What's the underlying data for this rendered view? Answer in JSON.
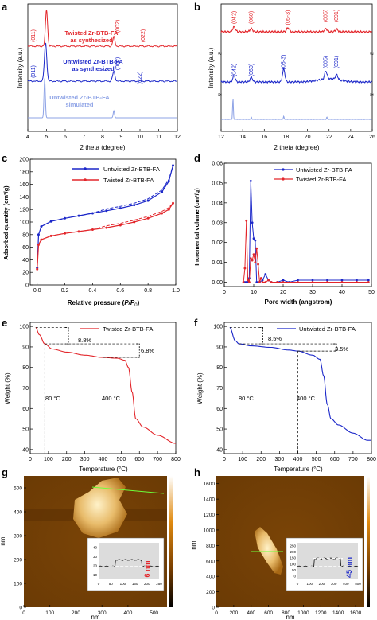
{
  "panels": {
    "a": {
      "letter": "a",
      "xlabel": "2 theta (degree)",
      "ylabel": "Intensity (a.u.)",
      "xticks": [
        "4",
        "5",
        "6",
        "7",
        "8",
        "9",
        "10",
        "11",
        "12"
      ],
      "curves": [
        {
          "label_line1": "Twisted Zr-BTB-FA",
          "label_line2": "as synthesized",
          "color": "#e3262b",
          "peaks": [
            {
              "x": 5.0,
              "h": 40,
              "label": "(011)"
            },
            {
              "x": 8.6,
              "h": 10,
              "label": "(002)"
            },
            {
              "x": 10.1,
              "h": 0,
              "label": "(022)"
            }
          ]
        },
        {
          "label_line1": "Untwisted Zr-BTB-FA",
          "label_line2": "as synthesized",
          "color": "#1b27c9",
          "peaks": [
            {
              "x": 4.95,
              "h": 40,
              "label": "(011)"
            },
            {
              "x": 8.6,
              "h": 10,
              "label": "(002)"
            },
            {
              "x": 10.1,
              "h": 0,
              "label": "(022)"
            }
          ]
        },
        {
          "label_line1": "Untwisted Zr-BTB-FA",
          "label_line2": "simulated",
          "color": "#8ea3e6",
          "peaks": [
            {
              "x": 4.9,
              "h": 45,
              "label": ""
            },
            {
              "x": 8.6,
              "h": 8,
              "label": ""
            }
          ]
        }
      ]
    },
    "b": {
      "letter": "b",
      "xlabel": "2 theta (degree)",
      "ylabel": "Intensity (a.u.)",
      "xticks": [
        "12",
        "14",
        "16",
        "18",
        "20",
        "22",
        "24",
        "26"
      ],
      "top_labels": [
        "(042)",
        "(060)",
        "(05-3)",
        "(005)",
        "(091)"
      ],
      "mid_labels": [
        "(042)",
        "(060)",
        "(05-3)",
        "(005)",
        "(091)"
      ]
    },
    "c": {
      "letter": "c",
      "xlabel_prefix": "Relative pressure (",
      "xlabel_italic": "P/P",
      "xlabel_sub": "0",
      "xlabel_suffix": ")",
      "ylabel": "Adsorbed quantity (cm³/g)",
      "xticks": [
        "0.0",
        "0.2",
        "0.4",
        "0.6",
        "0.8",
        "1.0"
      ],
      "yticks": [
        "0",
        "20",
        "40",
        "60",
        "80",
        "100",
        "120",
        "140",
        "160",
        "180",
        "200"
      ],
      "legend": [
        "Untwisted Zr-BTB-FA",
        "Twisted Zr-BTB-FA"
      ]
    },
    "d": {
      "letter": "d",
      "xlabel": "Pore width (angstrom)",
      "ylabel": "Incremental volume (cm³/g)",
      "xticks": [
        "0",
        "10",
        "20",
        "30",
        "40",
        "50"
      ],
      "yticks": [
        "0.00",
        "0.01",
        "0.02",
        "0.03",
        "0.04",
        "0.05",
        "0.06"
      ],
      "legend": [
        "Untwisted Zr-BTB-FA",
        "Twisted Zr-BTB-FA"
      ]
    },
    "e": {
      "letter": "e",
      "xlabel": "Temperature (°C)",
      "ylabel": "Weight (%)",
      "xticks": [
        "0",
        "100",
        "200",
        "300",
        "400",
        "500",
        "600",
        "700",
        "800"
      ],
      "yticks": [
        "40",
        "50",
        "60",
        "70",
        "80",
        "90",
        "100"
      ],
      "legend": "Twisted Zr-BTB-FA",
      "ann1": "8.8%",
      "ann2": "6.8%",
      "t1": "80 °C",
      "t2": "400 °C"
    },
    "f": {
      "letter": "f",
      "xlabel": "Temperature (°C)",
      "ylabel": "Weight (%)",
      "xticks": [
        "0",
        "100",
        "200",
        "300",
        "400",
        "500",
        "600",
        "700",
        "800"
      ],
      "yticks": [
        "40",
        "50",
        "60",
        "70",
        "80",
        "90",
        "100"
      ],
      "legend": "Untwisted Zr-BTB-FA",
      "ann1": "8.5%",
      "ann2": "3.5%",
      "t1": "80 °C",
      "t2": "400 °C"
    },
    "g": {
      "letter": "g",
      "xlabel": "nm",
      "ylabel": "nm",
      "xticks": [
        "0",
        "100",
        "200",
        "300",
        "400",
        "500"
      ],
      "yticks": [
        "0",
        "100",
        "200",
        "300",
        "400",
        "500"
      ],
      "inset_xlabel": "nm",
      "inset_ylabel": "nm",
      "inset_xticks": [
        "0",
        "50",
        "100",
        "150",
        "200",
        "250"
      ],
      "inset_yticks": [
        "10",
        "20",
        "30",
        "40"
      ],
      "height_label": "6 nm"
    },
    "h": {
      "letter": "h",
      "xlabel": "nm",
      "ylabel": "nm",
      "xticks": [
        "0",
        "200",
        "400",
        "600",
        "800",
        "1000",
        "1200",
        "1400",
        "1600"
      ],
      "yticks": [
        "0",
        "200",
        "400",
        "600",
        "800",
        "1000",
        "1200",
        "1400",
        "1600"
      ],
      "inset_xlabel": "nm",
      "inset_xticks": [
        "0",
        "100",
        "200",
        "300",
        "400",
        "500"
      ],
      "inset_yticks": [
        "0",
        "50",
        "100",
        "150",
        "200",
        "250"
      ],
      "inset_ylabel": "nm",
      "height_label": "45 nm"
    }
  },
  "chart_data": [
    {
      "type": "line",
      "panel": "a",
      "xlabel": "2 theta (degree)",
      "ylabel": "Intensity (a.u.)",
      "xlim": [
        4,
        12
      ],
      "series": [
        {
          "name": "Twisted Zr-BTB-FA as synthesized",
          "peaks_x": [
            5.0,
            8.6,
            10.1
          ],
          "peak_labels": [
            "(011)",
            "(002)",
            "(022)"
          ]
        },
        {
          "name": "Untwisted Zr-BTB-FA as synthesized",
          "peaks_x": [
            4.95,
            8.6,
            10.1
          ],
          "peak_labels": [
            "(011)",
            "(002)",
            "(022)"
          ]
        },
        {
          "name": "Untwisted Zr-BTB-FA simulated",
          "peaks_x": [
            4.9,
            8.6
          ]
        }
      ]
    },
    {
      "type": "line",
      "panel": "b",
      "xlabel": "2 theta (degree)",
      "ylabel": "Intensity (a.u.)",
      "xlim": [
        12,
        26
      ],
      "series": [
        {
          "name": "red",
          "peaks_x": [
            13.2,
            14.8,
            18.2,
            21.7,
            22.7
          ],
          "peak_labels": [
            "(042)",
            "(060)",
            "(05-3)",
            "(005)",
            "(091)"
          ]
        },
        {
          "name": "blue",
          "peaks_x": [
            13.2,
            14.8,
            17.8,
            21.7,
            22.7
          ],
          "peak_labels": [
            "(042)",
            "(060)",
            "(05-3)",
            "(005)",
            "(091)"
          ]
        },
        {
          "name": "simulated",
          "peaks_x": [
            13.1,
            14.8,
            17.8,
            21.8
          ]
        }
      ]
    },
    {
      "type": "line",
      "panel": "c",
      "xlabel": "Relative pressure (P/P0)",
      "ylabel": "Adsorbed quantity (cm3/g)",
      "xlim": [
        -0.05,
        1.0
      ],
      "ylim": [
        0,
        200
      ],
      "series": [
        {
          "name": "Untwisted Zr-BTB-FA",
          "x": [
            0.0,
            0.01,
            0.03,
            0.1,
            0.2,
            0.3,
            0.4,
            0.5,
            0.6,
            0.7,
            0.8,
            0.9,
            0.95,
            0.98
          ],
          "y": [
            27,
            80,
            93,
            101,
            106,
            110,
            114,
            118,
            122,
            127,
            134,
            148,
            165,
            190
          ]
        },
        {
          "name": "Twisted Zr-BTB-FA",
          "x": [
            0.0,
            0.01,
            0.03,
            0.1,
            0.2,
            0.3,
            0.4,
            0.5,
            0.6,
            0.7,
            0.8,
            0.9,
            0.95,
            0.98
          ],
          "y": [
            25,
            64,
            72,
            78,
            82,
            85,
            88,
            91,
            95,
            100,
            106,
            114,
            120,
            130
          ]
        }
      ]
    },
    {
      "type": "line",
      "panel": "d",
      "xlabel": "Pore width (angstrom)",
      "ylabel": "Incremental volume (cm3/g)",
      "xlim": [
        0,
        50
      ],
      "ylim": [
        -0.001,
        0.06
      ],
      "series": [
        {
          "name": "Untwisted Zr-BTB-FA",
          "x": [
            7,
            7.5,
            8,
            8.5,
            9,
            9.5,
            10,
            10.5,
            11,
            11.5,
            12,
            13,
            14,
            15,
            16,
            18,
            20,
            22,
            25,
            30,
            35,
            40,
            45,
            49
          ],
          "y": [
            0,
            0,
            0,
            0.002,
            0.051,
            0.03,
            0.022,
            0.021,
            0.0,
            0.0,
            0.0,
            0.001,
            0.004,
            0.001,
            0,
            0,
            0.001,
            0,
            0.001,
            0.001,
            0.001,
            0.001,
            0.001,
            0.001
          ]
        },
        {
          "name": "Twisted Zr-BTB-FA",
          "x": [
            6.5,
            7,
            7.5,
            8,
            8.5,
            9,
            9.5,
            10,
            10.5,
            11,
            11.5,
            12,
            12.5,
            13,
            14,
            15,
            16,
            18,
            20,
            25,
            30,
            35,
            40,
            45,
            49
          ],
          "y": [
            0,
            0.007,
            0.031,
            0.001,
            0.0,
            0.012,
            0.011,
            0.014,
            0.01,
            0.017,
            0.009,
            0.0,
            0.002,
            0.0,
            0,
            0.001,
            0,
            0,
            0,
            0,
            0,
            0,
            0,
            0,
            0
          ]
        }
      ]
    },
    {
      "type": "line",
      "panel": "e",
      "xlabel": "Temperature (°C)",
      "ylabel": "Weight (%)",
      "xlim": [
        0,
        800
      ],
      "ylim": [
        38,
        102
      ],
      "series": [
        {
          "name": "Twisted Zr-BTB-FA",
          "x": [
            30,
            50,
            80,
            120,
            200,
            300,
            400,
            480,
            520,
            540,
            560,
            580,
            620,
            700,
            800
          ],
          "y": [
            99.5,
            96,
            91.5,
            89,
            87.5,
            86,
            84.9,
            84.5,
            83.5,
            80,
            68,
            55,
            51,
            47,
            43
          ]
        }
      ]
    },
    {
      "type": "line",
      "panel": "f",
      "xlabel": "Temperature (°C)",
      "ylabel": "Weight (%)",
      "xlim": [
        0,
        800
      ],
      "ylim": [
        38,
        102
      ],
      "series": [
        {
          "name": "Untwisted Zr-BTB-FA",
          "x": [
            30,
            60,
            80,
            150,
            250,
            350,
            400,
            480,
            520,
            540,
            560,
            580,
            620,
            700,
            780,
            800
          ],
          "y": [
            99.5,
            93,
            91.5,
            90.5,
            89.8,
            88.5,
            88,
            86,
            84,
            76,
            62,
            55,
            52,
            48,
            44.5,
            44.5
          ]
        }
      ]
    }
  ]
}
